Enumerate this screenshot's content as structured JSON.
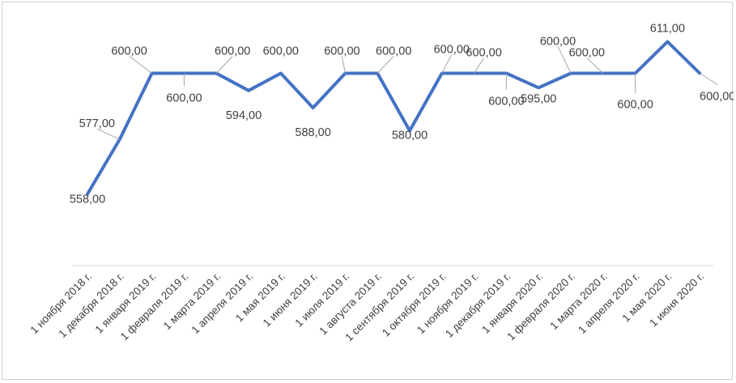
{
  "chart_data": {
    "type": "line",
    "title": "",
    "xlabel": "",
    "ylabel": "",
    "ylim": [
      530,
      615
    ],
    "grid": false,
    "legend": "none",
    "line_color": "#4472C4",
    "categories": [
      "1 ноября 2018 г.",
      "1 декабря 2018 г.",
      "1 января 2019 г.",
      "1 февраля 2019 г.",
      "1 марта 2019 г.",
      "1 апреля 2019 г.",
      "1 мая 2019 г.",
      "1 июня 2019 г.",
      "1 июля 2019 г.",
      "1 августа 2019 г.",
      "1 сентября 2019 г.",
      "1 октября 2019 г.",
      "1 ноября 2019 г.",
      "1 декабря 2019 г.",
      "1 января 2020 г.",
      "1 февраля 2020 г.",
      "1 марта 2020 г.",
      "1 апреля 2020 г.",
      "1 мая 2020 г.",
      "1 июня 2020 г."
    ],
    "values": [
      558,
      577,
      600,
      600,
      600,
      594,
      600,
      588,
      600,
      600,
      580,
      600,
      600,
      600,
      595,
      600,
      600,
      600,
      611,
      600
    ],
    "data_labels": [
      "558,00",
      "577,00",
      "600,00",
      "600,00",
      "600,00",
      "594,00",
      "600,00",
      "588,00",
      "600,00",
      "600,00",
      "580,00",
      "600,00",
      "600,00",
      "600,00",
      "595,00",
      "600,00",
      "600,00",
      "600,00",
      "611,00",
      "600,00"
    ]
  }
}
